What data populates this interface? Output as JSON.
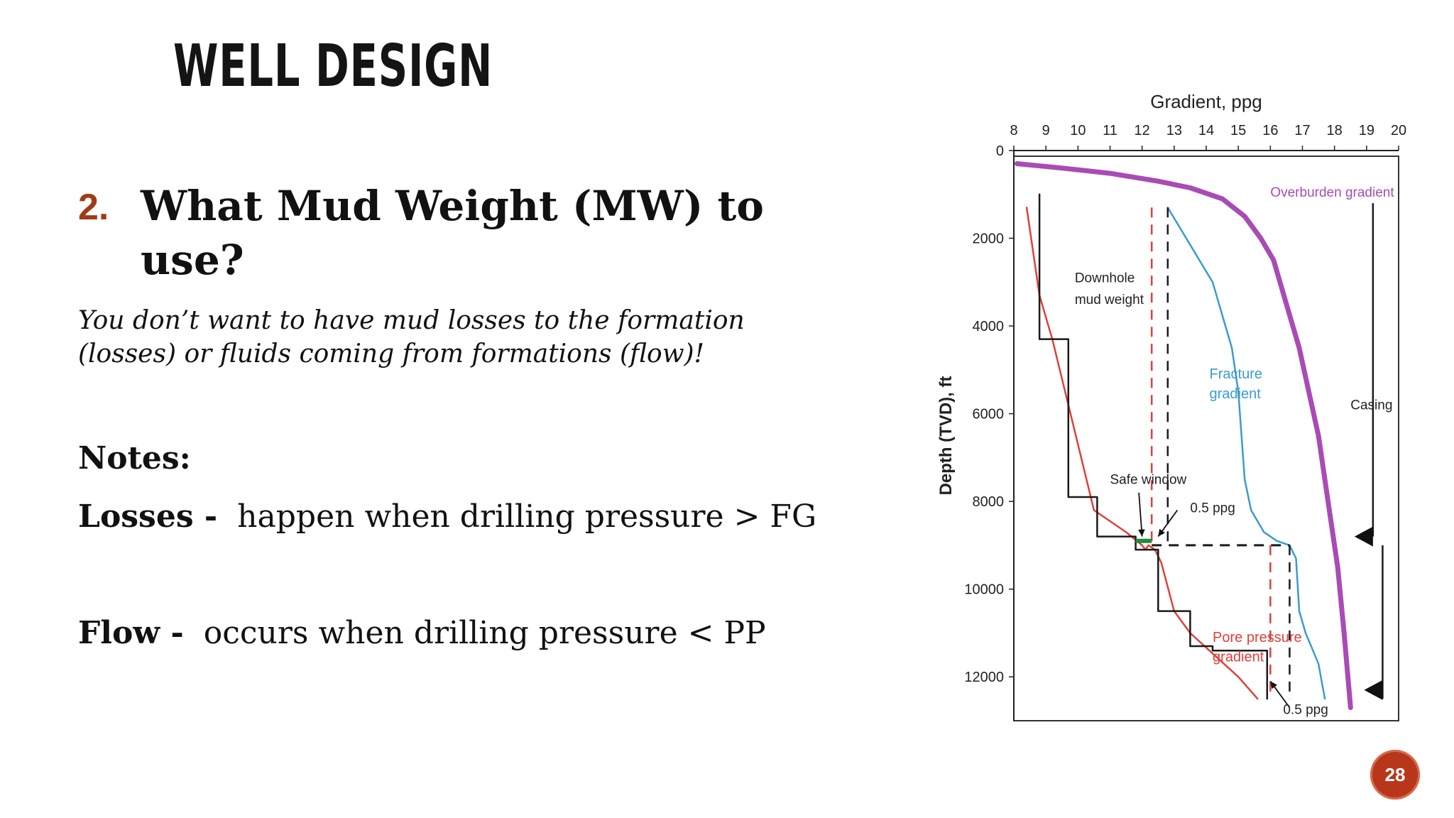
{
  "slide": {
    "title": "WELL DESIGN",
    "point_number": "2.",
    "point_question": "What Mud Weight (MW) to use?",
    "point_sub": "You don’t want to have mud losses to the formation (losses) or fluids coming from formations (flow)!",
    "notes_heading": "Notes:",
    "losses_term": "Losses -",
    "losses_text": "happen when drilling pressure > FG",
    "flow_term": "Flow -",
    "flow_text": "occurs when drilling pressure < PP",
    "page_number": "28"
  },
  "chart_data": {
    "type": "line",
    "x_axis_title": "Gradient, ppg",
    "y_axis_title": "Depth (TVD), ft",
    "x_ticks": [
      8,
      9,
      10,
      11,
      12,
      13,
      14,
      15,
      16,
      17,
      18,
      19,
      20
    ],
    "y_ticks": [
      0,
      2000,
      4000,
      6000,
      8000,
      10000,
      12000
    ],
    "xlim": [
      8,
      20
    ],
    "ylim": [
      0,
      13000
    ],
    "y_inverted": true,
    "x_axis_position": "top",
    "colors": {
      "overburden": "#a94bb5",
      "fracture": "#3a9bd2",
      "pore": "#e0403a",
      "mud": "#1a1a1a",
      "safe_window": "#1f8c3a"
    },
    "series": [
      {
        "name": "Overburden gradient",
        "x": [
          8.1,
          9.5,
          11.0,
          12.5,
          13.5,
          14.5,
          15.2,
          15.7,
          16.1,
          16.5,
          16.9,
          17.2,
          17.5,
          17.8,
          18.1,
          18.3,
          18.5
        ],
        "y": [
          300,
          400,
          520,
          700,
          850,
          1100,
          1500,
          2000,
          2500,
          3500,
          4500,
          5500,
          6500,
          8000,
          9500,
          11000,
          12700
        ]
      },
      {
        "name": "Fracture gradient",
        "x": [
          12.8,
          14.2,
          14.8,
          15.0,
          15.1,
          15.2,
          15.4,
          15.8,
          16.2,
          16.6,
          16.8,
          16.9,
          17.1,
          17.5,
          17.7
        ],
        "y": [
          1300,
          3000,
          4500,
          5500,
          6500,
          7500,
          8200,
          8700,
          8900,
          9000,
          9300,
          10500,
          11000,
          11700,
          12500
        ]
      },
      {
        "name": "Pore pressure gradient",
        "x": [
          8.4,
          8.8,
          9.2,
          9.6,
          10.5,
          11.5,
          12.0,
          12.1,
          12.2,
          12.4,
          12.6,
          13.0,
          13.5,
          15.0,
          15.6
        ],
        "y": [
          1300,
          3300,
          4300,
          5500,
          8200,
          8700,
          9000,
          9100,
          9000,
          9100,
          9400,
          10500,
          11000,
          12000,
          12500
        ]
      },
      {
        "name": "Downhole mud weight",
        "x": [
          8.8,
          8.8,
          9.7,
          9.7,
          10.6,
          10.6,
          11.8,
          11.8,
          12.5,
          12.5,
          13.5,
          13.5,
          14.2,
          14.2,
          15.9,
          15.9
        ],
        "y": [
          1000,
          4300,
          4300,
          7900,
          7900,
          8800,
          8800,
          9100,
          9100,
          10500,
          10500,
          11300,
          11300,
          11400,
          11400,
          12500
        ]
      }
    ],
    "annotations": [
      {
        "text": "Overburden gradient",
        "x": 16.0,
        "y": 1050
      },
      {
        "text": "Downhole",
        "x": 9.9,
        "y": 3000
      },
      {
        "text": "mud weight",
        "x": 9.9,
        "y": 3500
      },
      {
        "text": "Fracture",
        "x": 14.1,
        "y": 5200
      },
      {
        "text": "gradient",
        "x": 14.1,
        "y": 5650
      },
      {
        "text": "Casing",
        "x": 18.5,
        "y": 5900
      },
      {
        "text": "Safe window",
        "x": 11.0,
        "y": 7600
      },
      {
        "text": "0.5 ppg",
        "x": 13.5,
        "y": 8250
      },
      {
        "text": "Pore pressure",
        "x": 14.2,
        "y": 11200
      },
      {
        "text": "gradient",
        "x": 14.2,
        "y": 11650
      },
      {
        "text": "0.5 ppg",
        "x": 16.4,
        "y": 12850
      }
    ]
  }
}
